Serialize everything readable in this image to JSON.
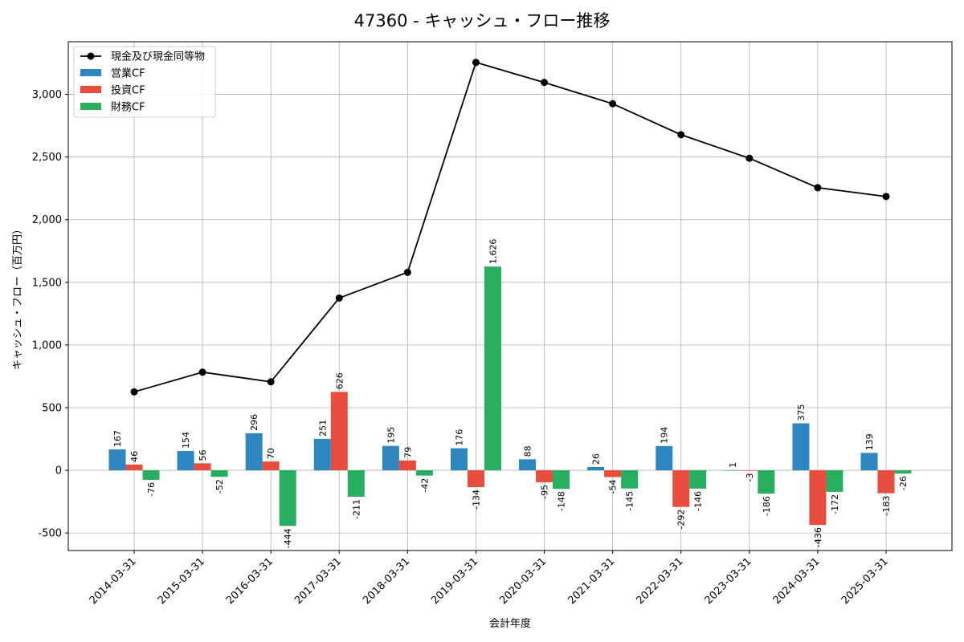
{
  "chart_data": {
    "type": "bar",
    "title": "47360 - キャッシュ・フロー推移",
    "xlabel": "会計年度",
    "ylabel": "キャッシュ・フロー（百万円）",
    "ylim": [
      -640,
      3420
    ],
    "yticks": [
      -500,
      0,
      500,
      1000,
      1500,
      2000,
      2500,
      3000
    ],
    "ytick_labels": [
      "-500",
      "0",
      "500",
      "1,000",
      "1,500",
      "2,000",
      "2,500",
      "3,000"
    ],
    "grid": true,
    "legend_position": "top-left",
    "categories": [
      "2014-03-31",
      "2015-03-31",
      "2016-03-31",
      "2017-03-31",
      "2018-03-31",
      "2019-03-31",
      "2020-03-31",
      "2021-03-31",
      "2022-03-31",
      "2023-03-31",
      "2024-03-31",
      "2025-03-31"
    ],
    "series": [
      {
        "name": "営業CF",
        "type": "bar",
        "color": "#2e86c1",
        "values": [
          167,
          154,
          296,
          251,
          195,
          176,
          88,
          26,
          194,
          1,
          375,
          139
        ],
        "labels": [
          "167",
          "154",
          "296",
          "251",
          "195",
          "176",
          "88",
          "26",
          "194",
          "1",
          "375",
          "139"
        ]
      },
      {
        "name": "投資CF",
        "type": "bar",
        "color": "#e74c3c",
        "values": [
          46,
          56,
          70,
          626,
          79,
          -134,
          -95,
          -54,
          -292,
          -3,
          -436,
          -183
        ],
        "labels": [
          "46",
          "56",
          "70",
          "626",
          "79",
          "-134",
          "-95",
          "-54",
          "-292",
          "-3",
          "-436",
          "-183"
        ]
      },
      {
        "name": "財務CF",
        "type": "bar",
        "color": "#27ae60",
        "values": [
          -76,
          -52,
          -444,
          -211,
          -42,
          1626,
          -148,
          -145,
          -146,
          -186,
          -172,
          -26
        ],
        "labels": [
          "-76",
          "-52",
          "-444",
          "-211",
          "-42",
          "1,626",
          "-148",
          "-145",
          "-146",
          "-186",
          "-172",
          "-26"
        ]
      },
      {
        "name": "現金及び現金同等物",
        "type": "line",
        "color": "#000000",
        "values": [
          626,
          783,
          706,
          1375,
          1580,
          3255,
          3095,
          2925,
          2678,
          2490,
          2255,
          2185
        ]
      }
    ]
  }
}
